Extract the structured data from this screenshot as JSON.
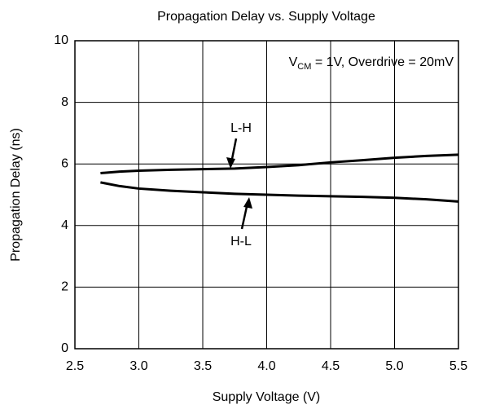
{
  "chart_data": {
    "type": "line",
    "title": "Propagation Delay vs. Supply Voltage",
    "x_label": "Supply Voltage (V)",
    "y_label": "Propagation Delay (ns)",
    "annotation": {
      "main": "V",
      "sub": "CM",
      "rest": " = 1V, Overdrive = 20mV"
    },
    "x": [
      2.7,
      2.85,
      3.0,
      3.25,
      3.5,
      3.75,
      4.0,
      4.25,
      4.5,
      4.75,
      5.0,
      5.25,
      5.5
    ],
    "series": [
      {
        "name": "L-H",
        "color": "#000000",
        "values": [
          5.7,
          5.75,
          5.78,
          5.81,
          5.83,
          5.85,
          5.9,
          5.96,
          6.05,
          6.12,
          6.2,
          6.26,
          6.3
        ]
      },
      {
        "name": "H-L",
        "color": "#000000",
        "values": [
          5.4,
          5.28,
          5.2,
          5.13,
          5.08,
          5.03,
          5.0,
          4.97,
          4.95,
          4.93,
          4.9,
          4.85,
          4.78
        ]
      }
    ],
    "xlim": [
      2.5,
      5.5
    ],
    "xticks": [
      2.5,
      {
        "value": 3,
        "label": "3.0"
      },
      3.5,
      {
        "value": 4,
        "label": "4.0"
      },
      4.5,
      {
        "value": 5,
        "label": "5.0"
      },
      5.5
    ],
    "ylim": [
      0,
      10
    ],
    "yticks": [
      0,
      2,
      4,
      6,
      8,
      10
    ],
    "grid": true
  }
}
